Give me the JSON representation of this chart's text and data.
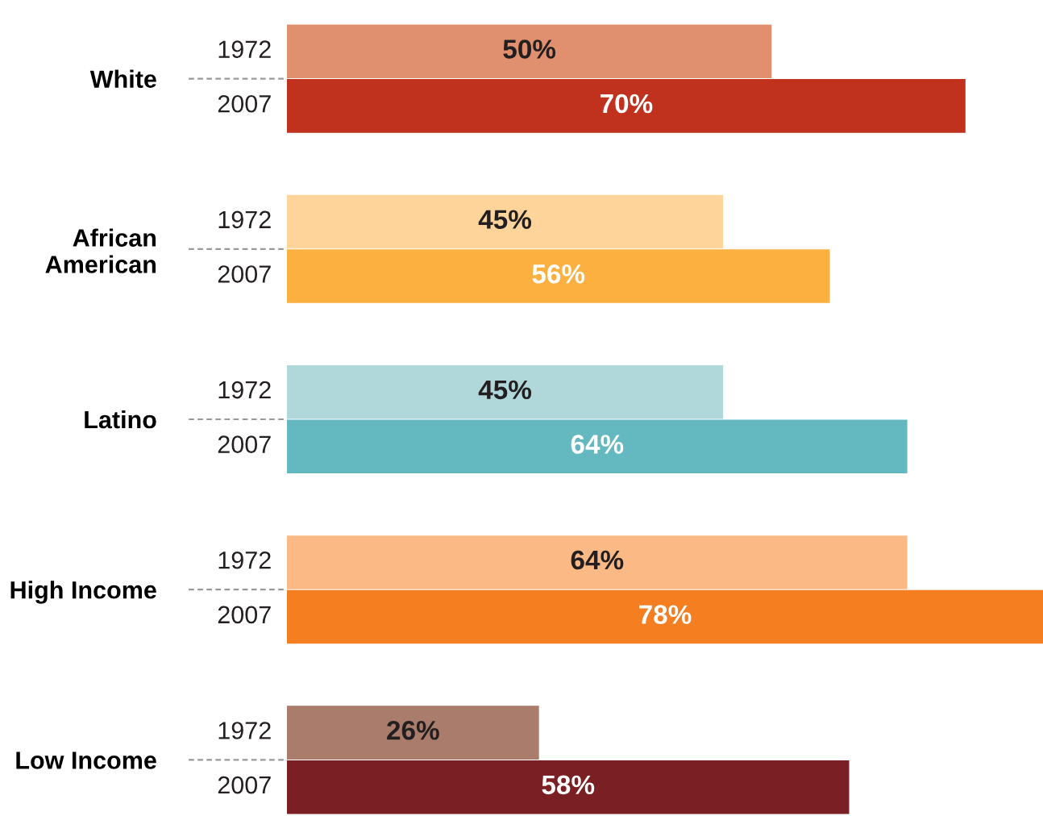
{
  "chart_data": {
    "type": "bar",
    "orientation": "horizontal",
    "categories": [
      "White",
      "African\nAmerican",
      "Latino",
      "High Income",
      "Low Income"
    ],
    "series": [
      {
        "name": "1972",
        "colors": [
          "#e0906e",
          "#fed49a",
          "#b0d8db",
          "#fbb985",
          "#a97c6c"
        ],
        "values": [
          50,
          45,
          45,
          64,
          26
        ],
        "value_labels": [
          "50%",
          "45%",
          "45%",
          "64%",
          "26%"
        ]
      },
      {
        "name": "2007",
        "colors": [
          "#c0311e",
          "#fbb040",
          "#63b9bf",
          "#f47e20",
          "#7a1f23"
        ],
        "values": [
          70,
          56,
          64,
          78,
          58
        ],
        "value_labels": [
          "70%",
          "56%",
          "64%",
          "78%",
          "58%"
        ]
      }
    ]
  }
}
